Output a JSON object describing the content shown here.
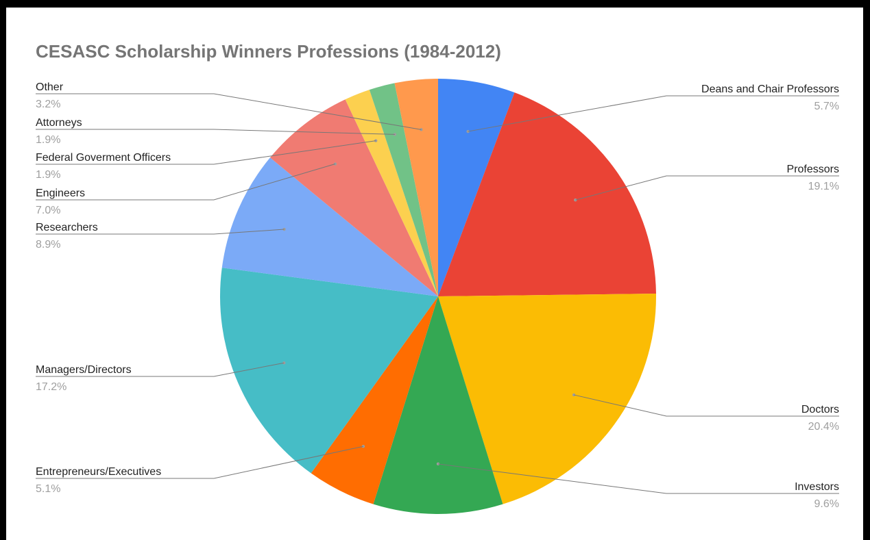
{
  "chart_data": {
    "type": "pie",
    "title": "CESASC Scholarship Winners Professions (1984-2012)",
    "slices": [
      {
        "label": "Deans and Chair Professors",
        "value": 5.7,
        "display": "5.7%",
        "color": "#4285f4",
        "side": "right"
      },
      {
        "label": "Professors",
        "value": 19.1,
        "display": "19.1%",
        "color": "#ea4335",
        "side": "right"
      },
      {
        "label": "Doctors",
        "value": 20.4,
        "display": "20.4%",
        "color": "#fbbc04",
        "side": "right"
      },
      {
        "label": "Investors",
        "value": 9.6,
        "display": "9.6%",
        "color": "#34a853",
        "side": "right"
      },
      {
        "label": "Entrepreneurs/Executives",
        "value": 5.1,
        "display": "5.1%",
        "color": "#ff6d01",
        "side": "left"
      },
      {
        "label": "Managers/Directors",
        "value": 17.2,
        "display": "17.2%",
        "color": "#46bdc6",
        "side": "left"
      },
      {
        "label": "Researchers",
        "value": 8.9,
        "display": "8.9%",
        "color": "#7baaf7",
        "side": "left"
      },
      {
        "label": "Engineers",
        "value": 7.0,
        "display": "7.0%",
        "color": "#f07b72",
        "side": "left"
      },
      {
        "label": "Federal Goverment Officers",
        "value": 1.9,
        "display": "1.9%",
        "color": "#fcd04f",
        "side": "left"
      },
      {
        "label": "Attorneys",
        "value": 1.9,
        "display": "1.9%",
        "color": "#71c287",
        "side": "left"
      },
      {
        "label": "Other",
        "value": 3.2,
        "display": "3.2%",
        "color": "#ff994d",
        "side": "left"
      }
    ],
    "legend": "none",
    "label_style": "callout"
  }
}
